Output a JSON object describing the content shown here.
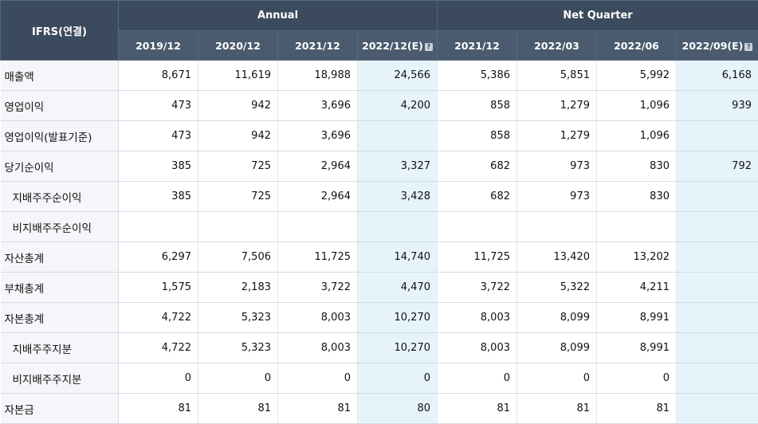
{
  "header": {
    "corner": "IFRS(연결)",
    "annual": "Annual",
    "quarter": "Net Quarter",
    "est_icon": "?"
  },
  "columns": [
    "2019/12",
    "2020/12",
    "2021/12",
    "2022/12(E)",
    "2021/12",
    "2022/03",
    "2022/06",
    "2022/09(E)"
  ],
  "rows": [
    {
      "label": "매출액",
      "values": [
        "8,671",
        "11,619",
        "18,988",
        "24,566",
        "5,386",
        "5,851",
        "5,992",
        "6,168"
      ]
    },
    {
      "label": "영업이익",
      "values": [
        "473",
        "942",
        "3,696",
        "4,200",
        "858",
        "1,279",
        "1,096",
        "939"
      ]
    },
    {
      "label": "영업이익(발표기준)",
      "values": [
        "473",
        "942",
        "3,696",
        "",
        "858",
        "1,279",
        "1,096",
        ""
      ]
    },
    {
      "label": "당기순이익",
      "values": [
        "385",
        "725",
        "2,964",
        "3,327",
        "682",
        "973",
        "830",
        "792"
      ]
    },
    {
      "label": "지배주주순이익",
      "values": [
        "385",
        "725",
        "2,964",
        "3,428",
        "682",
        "973",
        "830",
        ""
      ]
    },
    {
      "label": "비지배주주순이익",
      "values": [
        "",
        "",
        "",
        "",
        "",
        "",
        "",
        ""
      ]
    },
    {
      "label": "자산총계",
      "values": [
        "6,297",
        "7,506",
        "11,725",
        "14,740",
        "11,725",
        "13,420",
        "13,202",
        ""
      ]
    },
    {
      "label": "부채총계",
      "values": [
        "1,575",
        "2,183",
        "3,722",
        "4,470",
        "3,722",
        "5,322",
        "4,211",
        ""
      ]
    },
    {
      "label": "자본총계",
      "values": [
        "4,722",
        "5,323",
        "8,003",
        "10,270",
        "8,003",
        "8,099",
        "8,991",
        ""
      ]
    },
    {
      "label": "지배주주지분",
      "values": [
        "4,722",
        "5,323",
        "8,003",
        "10,270",
        "8,003",
        "8,099",
        "8,991",
        ""
      ]
    },
    {
      "label": "비지배주주지분",
      "values": [
        "0",
        "0",
        "0",
        "0",
        "0",
        "0",
        "0",
        ""
      ]
    },
    {
      "label": "자본금",
      "values": [
        "81",
        "81",
        "81",
        "80",
        "81",
        "81",
        "81",
        ""
      ]
    }
  ]
}
